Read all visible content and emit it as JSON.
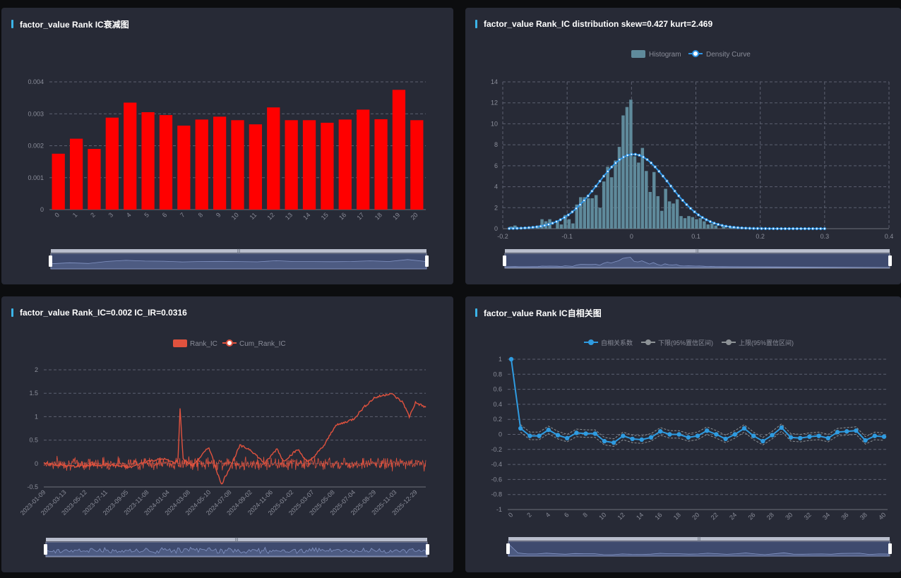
{
  "panels": [
    {
      "title": "factor_value Rank IC衰减图"
    },
    {
      "title": "factor_value Rank_IC distribution skew=0.427 kurt=2.469"
    },
    {
      "title": "factor_value Rank_IC=0.002 IC_IR=0.0316"
    },
    {
      "title": "factor_value Rank IC自相关图"
    }
  ],
  "colors": {
    "background": "#272a36",
    "bar_red": "#ff0000",
    "hist": "#5f8a9b",
    "density": "#2f95e6",
    "ic_line": "#e0523e",
    "acf": "#2f9be0",
    "ci": "#8d9296"
  },
  "chart_data": [
    {
      "type": "bar",
      "categories": [
        "0",
        "1",
        "2",
        "3",
        "4",
        "5",
        "6",
        "7",
        "8",
        "9",
        "10",
        "11",
        "12",
        "13",
        "14",
        "15",
        "16",
        "17",
        "18",
        "19",
        "20"
      ],
      "series": [
        {
          "values": [
            0.00175,
            0.00222,
            0.0019,
            0.00288,
            0.00335,
            0.00305,
            0.00296,
            0.00263,
            0.00282,
            0.00291,
            0.0028,
            0.00267,
            0.0032,
            0.0028,
            0.0028,
            0.00272,
            0.00282,
            0.00313,
            0.00283,
            0.00375,
            0.0028
          ]
        }
      ],
      "ylim": [
        0,
        0.004
      ],
      "yticks": [
        "0",
        "0.001",
        "0.002",
        "0.003",
        "0.004"
      ],
      "grid": true
    },
    {
      "type": "bar",
      "legend": [
        "Histogram",
        "Density Curve"
      ],
      "xlim": [
        -0.2,
        0.4
      ],
      "ylim": [
        0,
        14
      ],
      "xticks": [
        "-0.2",
        "-0.1",
        "0",
        "0.1",
        "0.2",
        "0.3",
        "0.4"
      ],
      "yticks": [
        "0",
        "2",
        "4",
        "6",
        "8",
        "10",
        "12",
        "14"
      ],
      "histogram": {
        "bin_width": 0.006,
        "bins": [
          [
            -0.19,
            0.2
          ],
          [
            -0.184,
            0.3
          ],
          [
            -0.178,
            0.1
          ],
          [
            -0.166,
            0.1
          ],
          [
            -0.148,
            0.3
          ],
          [
            -0.142,
            0.9
          ],
          [
            -0.136,
            0.7
          ],
          [
            -0.13,
            0.9
          ],
          [
            -0.118,
            0.7
          ],
          [
            -0.112,
            0.4
          ],
          [
            -0.106,
            1.3
          ],
          [
            -0.1,
            0.9
          ],
          [
            -0.094,
            0.5
          ],
          [
            -0.088,
            2.3
          ],
          [
            -0.082,
            3.0
          ],
          [
            -0.076,
            3.0
          ],
          [
            -0.07,
            2.9
          ],
          [
            -0.064,
            2.9
          ],
          [
            -0.058,
            3.2
          ],
          [
            -0.052,
            2.0
          ],
          [
            -0.046,
            4.5
          ],
          [
            -0.04,
            5.9
          ],
          [
            -0.034,
            4.9
          ],
          [
            -0.028,
            6.5
          ],
          [
            -0.022,
            7.8
          ],
          [
            -0.016,
            10.8
          ],
          [
            -0.01,
            11.6
          ],
          [
            -0.004,
            12.3
          ],
          [
            0.002,
            6.9
          ],
          [
            0.008,
            6.3
          ],
          [
            0.014,
            7.7
          ],
          [
            0.02,
            5.5
          ],
          [
            0.026,
            3.5
          ],
          [
            0.032,
            5.4
          ],
          [
            0.038,
            3.1
          ],
          [
            0.044,
            1.7
          ],
          [
            0.05,
            3.8
          ],
          [
            0.056,
            2.6
          ],
          [
            0.062,
            2.4
          ],
          [
            0.068,
            2.8
          ],
          [
            0.074,
            1.2
          ],
          [
            0.08,
            1.0
          ],
          [
            0.086,
            1.2
          ],
          [
            0.092,
            1.1
          ],
          [
            0.098,
            0.9
          ],
          [
            0.104,
            1.0
          ],
          [
            0.11,
            0.7
          ],
          [
            0.116,
            0.4
          ],
          [
            0.122,
            0.5
          ],
          [
            0.128,
            0.3
          ],
          [
            0.14,
            0.2
          ],
          [
            0.152,
            0.1
          ]
        ]
      },
      "density": {
        "mean": 0.003,
        "sd": 0.055,
        "peak": 7.1,
        "x_start": -0.19,
        "x_end": 0.3,
        "points": 81
      }
    },
    {
      "type": "line",
      "legend": [
        "Rank_IC",
        "Cum_Rank_IC"
      ],
      "ylim": [
        -0.5,
        2
      ],
      "yticks": [
        "-0.5",
        "0",
        "0.5",
        "1",
        "1.5",
        "2"
      ],
      "x_labels": [
        "2023-01-09",
        "2023-03-13",
        "2023-05-12",
        "2023-07-11",
        "2023-09-05",
        "2023-11-08",
        "2024-01-04",
        "2024-03-08",
        "2024-05-10",
        "2024-07-08",
        "2024-09-02",
        "2024-11-06",
        "2025-01-02",
        "2025-03-07",
        "2025-05-08",
        "2025-07-04",
        "2025-08-29",
        "2025-11-03",
        "2025-12-29"
      ],
      "cum_rank_ic_keypoints": [
        [
          0,
          0.0
        ],
        [
          1.5,
          -0.06
        ],
        [
          3,
          -0.02
        ],
        [
          4.2,
          -0.08
        ],
        [
          5,
          0.05
        ],
        [
          5.8,
          0.1
        ],
        [
          6.3,
          0.02
        ],
        [
          6.5,
          0.08
        ],
        [
          6.6,
          1.16
        ],
        [
          6.75,
          0.1
        ],
        [
          7.2,
          -0.05
        ],
        [
          8.0,
          0.35
        ],
        [
          8.6,
          -0.45
        ],
        [
          9.1,
          0.0
        ],
        [
          9.5,
          0.38
        ],
        [
          10.0,
          0.3
        ],
        [
          10.7,
          0.0
        ],
        [
          11.3,
          0.32
        ],
        [
          11.6,
          0.05
        ],
        [
          12.3,
          0.3
        ],
        [
          12.8,
          0.02
        ],
        [
          13.3,
          0.25
        ],
        [
          13.6,
          0.4
        ],
        [
          14.1,
          0.8
        ],
        [
          15.0,
          0.95
        ],
        [
          15.5,
          1.2
        ],
        [
          16.0,
          1.4
        ],
        [
          16.8,
          1.5
        ],
        [
          17.4,
          1.3
        ],
        [
          17.7,
          1.0
        ],
        [
          18.0,
          1.3
        ],
        [
          18.5,
          1.2
        ]
      ],
      "rank_ic_range": [
        -0.12,
        0.12
      ]
    },
    {
      "type": "line",
      "legend": [
        "自相关系数",
        "下限(95%置信区间)",
        "上限(95%置信区间)"
      ],
      "xticks": [
        "0",
        "2",
        "4",
        "6",
        "8",
        "10",
        "12",
        "14",
        "16",
        "18",
        "20",
        "22",
        "24",
        "26",
        "28",
        "30",
        "32",
        "34",
        "36",
        "38",
        "40"
      ],
      "yticks": [
        "1",
        "0.8",
        "0.6",
        "0.4",
        "0.2",
        "0",
        "-0.2",
        "-0.4",
        "-0.6",
        "-0.8",
        "-1"
      ],
      "ylim": [
        -1,
        1
      ],
      "lags": [
        0,
        1,
        2,
        3,
        4,
        5,
        6,
        7,
        8,
        9,
        10,
        11,
        12,
        13,
        14,
        15,
        16,
        17,
        18,
        19,
        20,
        21,
        22,
        23,
        24,
        25,
        26,
        27,
        28,
        29,
        30,
        31,
        32,
        33,
        34,
        35,
        36,
        37,
        38,
        39,
        40
      ],
      "acf": [
        1,
        0.08,
        -0.02,
        -0.02,
        0.06,
        -0.01,
        -0.05,
        0.02,
        0.01,
        0.01,
        -0.09,
        -0.11,
        -0.02,
        -0.06,
        -0.07,
        -0.04,
        0.04,
        0.0,
        0.0,
        -0.04,
        -0.02,
        0.05,
        0.0,
        -0.06,
        0.0,
        0.08,
        -0.02,
        -0.09,
        -0.01,
        0.09,
        -0.04,
        -0.05,
        -0.03,
        -0.02,
        -0.05,
        0.03,
        0.04,
        0.05,
        -0.08,
        -0.02,
        -0.03
      ],
      "ci_half_width": 0.05
    }
  ]
}
